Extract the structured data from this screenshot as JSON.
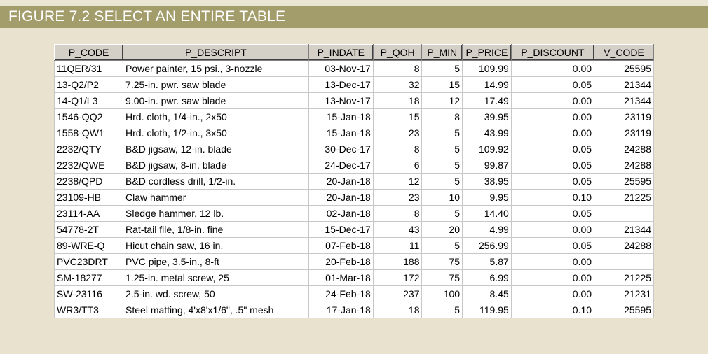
{
  "figure": {
    "title": "FIGURE 7.2  SELECT AN ENTIRE TABLE"
  },
  "table": {
    "columns": [
      "P_CODE",
      "P_DESCRIPT",
      "P_INDATE",
      "P_QOH",
      "P_MIN",
      "P_PRICE",
      "P_DISCOUNT",
      "V_CODE"
    ],
    "rows": [
      [
        "11QER/31",
        "Power painter, 15 psi., 3-nozzle",
        "03-Nov-17",
        "8",
        "5",
        "109.99",
        "0.00",
        "25595"
      ],
      [
        "13-Q2/P2",
        "7.25-in. pwr. saw blade",
        "13-Dec-17",
        "32",
        "15",
        "14.99",
        "0.05",
        "21344"
      ],
      [
        "14-Q1/L3",
        "9.00-in. pwr. saw blade",
        "13-Nov-17",
        "18",
        "12",
        "17.49",
        "0.00",
        "21344"
      ],
      [
        "1546-QQ2",
        "Hrd. cloth, 1/4-in., 2x50",
        "15-Jan-18",
        "15",
        "8",
        "39.95",
        "0.00",
        "23119"
      ],
      [
        "1558-QW1",
        "Hrd. cloth, 1/2-in., 3x50",
        "15-Jan-18",
        "23",
        "5",
        "43.99",
        "0.00",
        "23119"
      ],
      [
        "2232/QTY",
        "B&D jigsaw, 12-in. blade",
        "30-Dec-17",
        "8",
        "5",
        "109.92",
        "0.05",
        "24288"
      ],
      [
        "2232/QWE",
        "B&D jigsaw, 8-in. blade",
        "24-Dec-17",
        "6",
        "5",
        "99.87",
        "0.05",
        "24288"
      ],
      [
        "2238/QPD",
        "B&D cordless drill, 1/2-in.",
        "20-Jan-18",
        "12",
        "5",
        "38.95",
        "0.05",
        "25595"
      ],
      [
        "23109-HB",
        "Claw hammer",
        "20-Jan-18",
        "23",
        "10",
        "9.95",
        "0.10",
        "21225"
      ],
      [
        "23114-AA",
        "Sledge hammer, 12 lb.",
        "02-Jan-18",
        "8",
        "5",
        "14.40",
        "0.05",
        ""
      ],
      [
        "54778-2T",
        "Rat-tail file, 1/8-in. fine",
        "15-Dec-17",
        "43",
        "20",
        "4.99",
        "0.00",
        "21344"
      ],
      [
        "89-WRE-Q",
        "Hicut chain saw, 16 in.",
        "07-Feb-18",
        "11",
        "5",
        "256.99",
        "0.05",
        "24288"
      ],
      [
        "PVC23DRT",
        "PVC pipe, 3.5-in., 8-ft",
        "20-Feb-18",
        "188",
        "75",
        "5.87",
        "0.00",
        ""
      ],
      [
        "SM-18277",
        "1.25-in. metal screw, 25",
        "01-Mar-18",
        "172",
        "75",
        "6.99",
        "0.00",
        "21225"
      ],
      [
        "SW-23116",
        "2.5-in. wd. screw, 50",
        "24-Feb-18",
        "237",
        "100",
        "8.45",
        "0.00",
        "21231"
      ],
      [
        "WR3/TT3",
        "Steel matting, 4'x8'x1/6\", .5\" mesh",
        "17-Jan-18",
        "18",
        "5",
        "119.95",
        "0.10",
        "25595"
      ]
    ]
  }
}
